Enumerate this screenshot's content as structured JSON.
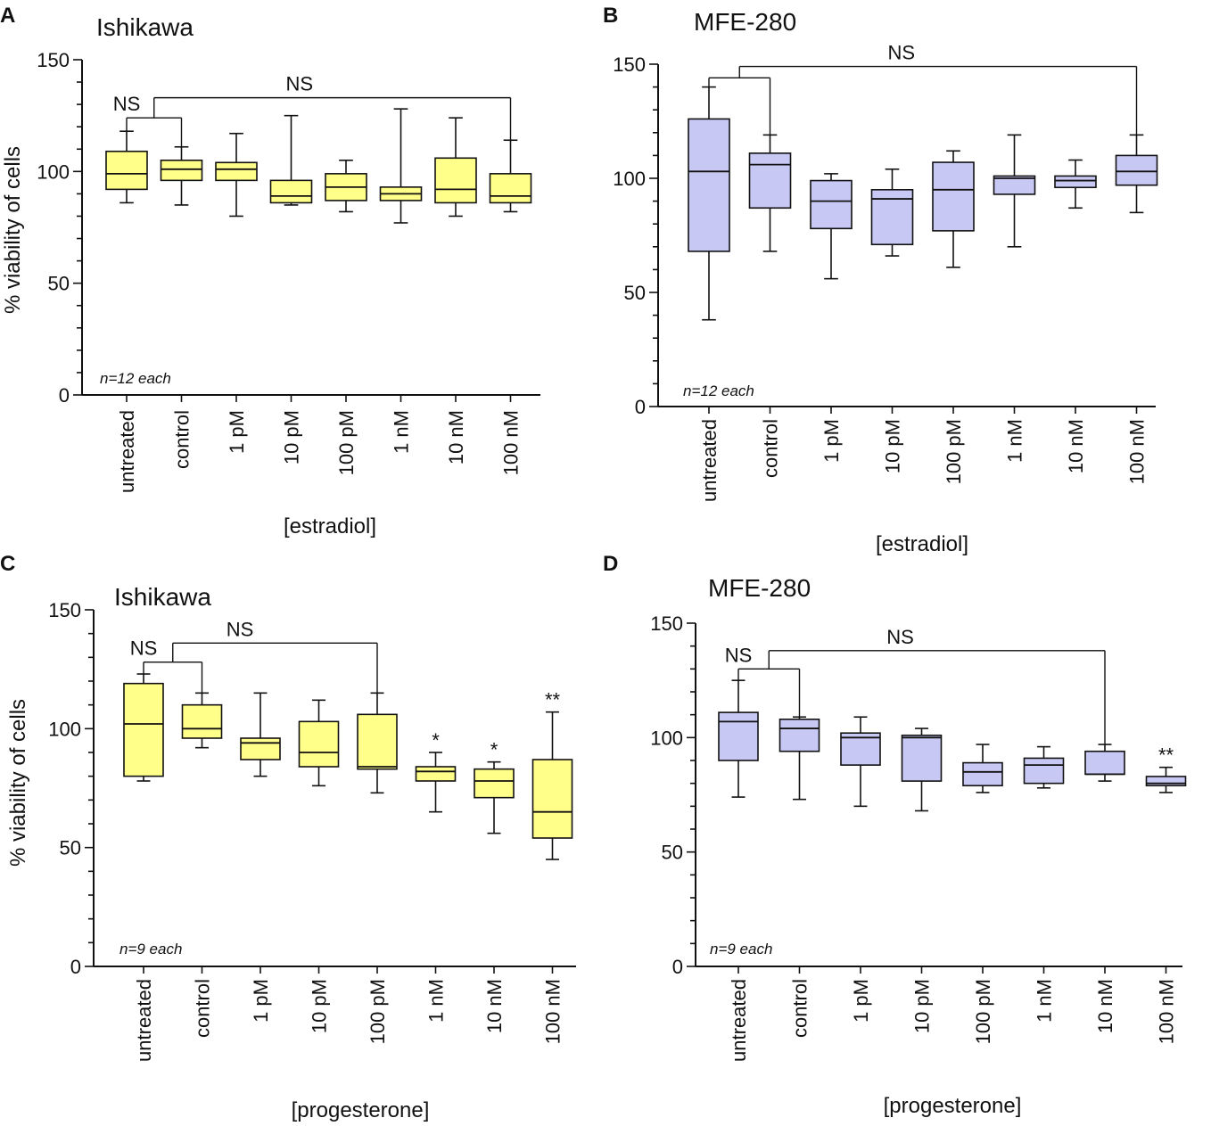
{
  "ylabel": "% viability of cells",
  "colors": {
    "yellow_fill": "#ffff8a",
    "blue_fill": "#c8c8f5",
    "stroke": "#111111"
  },
  "chart_data": [
    {
      "panel": "A",
      "type": "box",
      "title": "Ishikawa",
      "xlabel": "[estradiol]",
      "ylabel": "% viability of cells",
      "ylim": [
        0,
        150
      ],
      "yticks": [
        "0",
        "50",
        "100",
        "150"
      ],
      "note": "n=12 each",
      "fill": "yellow",
      "categories": [
        "untreated",
        "control",
        "1 pM",
        "10 pM",
        "100 pM",
        "1 nM",
        "10 nM",
        "100 nM"
      ],
      "boxes": [
        {
          "min": 86,
          "q1": 92,
          "median": 99,
          "q3": 109,
          "max": 118,
          "star": ""
        },
        {
          "min": 85,
          "q1": 96,
          "median": 101,
          "q3": 105,
          "max": 111,
          "star": ""
        },
        {
          "min": 80,
          "q1": 96,
          "median": 101,
          "q3": 104,
          "max": 117,
          "star": ""
        },
        {
          "min": 85,
          "q1": 86,
          "median": 89,
          "q3": 96,
          "max": 125,
          "star": ""
        },
        {
          "min": 82,
          "q1": 87,
          "median": 93,
          "q3": 99,
          "max": 105,
          "star": ""
        },
        {
          "min": 77,
          "q1": 87,
          "median": 90,
          "q3": 93,
          "max": 128,
          "star": ""
        },
        {
          "min": 80,
          "q1": 86,
          "median": 92,
          "q3": 106,
          "max": 124,
          "star": ""
        },
        {
          "min": 82,
          "q1": 86,
          "median": 89,
          "q3": 99,
          "max": 114,
          "star": ""
        }
      ],
      "brackets": [
        {
          "label": "NS",
          "level": 124,
          "from": 0,
          "to": 1,
          "from_top": 118,
          "to_top": 111
        },
        {
          "label": "NS",
          "level": 133,
          "from": 0.5,
          "to": 7,
          "from_top": 124,
          "to_top": 114
        }
      ]
    },
    {
      "panel": "B",
      "type": "box",
      "title": "MFE-280",
      "xlabel": "[estradiol]",
      "ylabel": "",
      "ylim": [
        0,
        150
      ],
      "yticks": [
        "0",
        "50",
        "100",
        "150"
      ],
      "note": "n=12 each",
      "fill": "blue",
      "categories": [
        "untreated",
        "control",
        "1 pM",
        "10 pM",
        "100 pM",
        "1 nM",
        "10 nM",
        "100 nM"
      ],
      "boxes": [
        {
          "min": 38,
          "q1": 68,
          "median": 103,
          "q3": 126,
          "max": 140,
          "star": ""
        },
        {
          "min": 68,
          "q1": 87,
          "median": 106,
          "q3": 111,
          "max": 119,
          "star": ""
        },
        {
          "min": 56,
          "q1": 78,
          "median": 90,
          "q3": 99,
          "max": 102,
          "star": ""
        },
        {
          "min": 66,
          "q1": 71,
          "median": 91,
          "q3": 95,
          "max": 104,
          "star": ""
        },
        {
          "min": 61,
          "q1": 77,
          "median": 95,
          "q3": 107,
          "max": 112,
          "star": ""
        },
        {
          "min": 70,
          "q1": 93,
          "median": 100,
          "q3": 101,
          "max": 119,
          "star": ""
        },
        {
          "min": 87,
          "q1": 96,
          "median": 99,
          "q3": 101,
          "max": 108,
          "star": ""
        },
        {
          "min": 85,
          "q1": 97,
          "median": 103,
          "q3": 110,
          "max": 119,
          "star": ""
        }
      ],
      "brackets": [
        {
          "label": "",
          "level": 144,
          "from": 0,
          "to": 1,
          "from_top": 140,
          "to_top": 119
        },
        {
          "label": "NS",
          "level": 149,
          "from": 0.5,
          "to": 7,
          "from_top": 144,
          "to_top": 119
        }
      ]
    },
    {
      "panel": "C",
      "type": "box",
      "title": "Ishikawa",
      "xlabel": "[progesterone]",
      "ylabel": "% viability of cells",
      "ylim": [
        0,
        150
      ],
      "yticks": [
        "0",
        "50",
        "100",
        "150"
      ],
      "note": "n=9 each",
      "fill": "yellow",
      "categories": [
        "untreated",
        "control",
        "1 pM",
        "10 pM",
        "100 pM",
        "1 nM",
        "10 nM",
        "100 nM"
      ],
      "boxes": [
        {
          "min": 78,
          "q1": 80,
          "median": 102,
          "q3": 119,
          "max": 123,
          "star": ""
        },
        {
          "min": 92,
          "q1": 96,
          "median": 100,
          "q3": 110,
          "max": 115,
          "star": ""
        },
        {
          "min": 80,
          "q1": 87,
          "median": 94,
          "q3": 96,
          "max": 115,
          "star": ""
        },
        {
          "min": 76,
          "q1": 84,
          "median": 90,
          "q3": 103,
          "max": 112,
          "star": ""
        },
        {
          "min": 73,
          "q1": 83,
          "median": 84,
          "q3": 106,
          "max": 115,
          "star": ""
        },
        {
          "min": 65,
          "q1": 78,
          "median": 82,
          "q3": 84,
          "max": 90,
          "star": "*"
        },
        {
          "min": 56,
          "q1": 71,
          "median": 78,
          "q3": 83,
          "max": 86,
          "star": "*"
        },
        {
          "min": 45,
          "q1": 54,
          "median": 65,
          "q3": 87,
          "max": 107,
          "star": "**"
        }
      ],
      "brackets": [
        {
          "label": "NS",
          "level": 128,
          "from": 0,
          "to": 1,
          "from_top": 123,
          "to_top": 115
        },
        {
          "label": "NS",
          "level": 136,
          "from": 0.5,
          "to": 4,
          "from_top": 128,
          "to_top": 115
        }
      ]
    },
    {
      "panel": "D",
      "type": "box",
      "title": "MFE-280",
      "xlabel": "[progesterone]",
      "ylabel": "",
      "ylim": [
        0,
        150
      ],
      "yticks": [
        "0",
        "50",
        "100",
        "150"
      ],
      "note": "n=9 each",
      "fill": "blue",
      "categories": [
        "untreated",
        "control",
        "1 pM",
        "10 pM",
        "100 pM",
        "1 nM",
        "10 nM",
        "100 nM"
      ],
      "boxes": [
        {
          "min": 74,
          "q1": 90,
          "median": 107,
          "q3": 111,
          "max": 125,
          "star": ""
        },
        {
          "min": 73,
          "q1": 94,
          "median": 104,
          "q3": 108,
          "max": 109,
          "star": ""
        },
        {
          "min": 70,
          "q1": 88,
          "median": 100,
          "q3": 102,
          "max": 109,
          "star": ""
        },
        {
          "min": 68,
          "q1": 81,
          "median": 100,
          "q3": 101,
          "max": 104,
          "star": ""
        },
        {
          "min": 76,
          "q1": 79,
          "median": 85,
          "q3": 89,
          "max": 97,
          "star": ""
        },
        {
          "min": 78,
          "q1": 80,
          "median": 88,
          "q3": 91,
          "max": 96,
          "star": ""
        },
        {
          "min": 81,
          "q1": 84,
          "median": 84,
          "q3": 94,
          "max": 97,
          "star": ""
        },
        {
          "min": 76,
          "q1": 79,
          "median": 80,
          "q3": 83,
          "max": 87,
          "star": "**"
        }
      ],
      "brackets": [
        {
          "label": "NS",
          "level": 130,
          "from": 0,
          "to": 1,
          "from_top": 125,
          "to_top": 109
        },
        {
          "label": "NS",
          "level": 138,
          "from": 0.5,
          "to": 6,
          "from_top": 130,
          "to_top": 97
        }
      ]
    }
  ]
}
